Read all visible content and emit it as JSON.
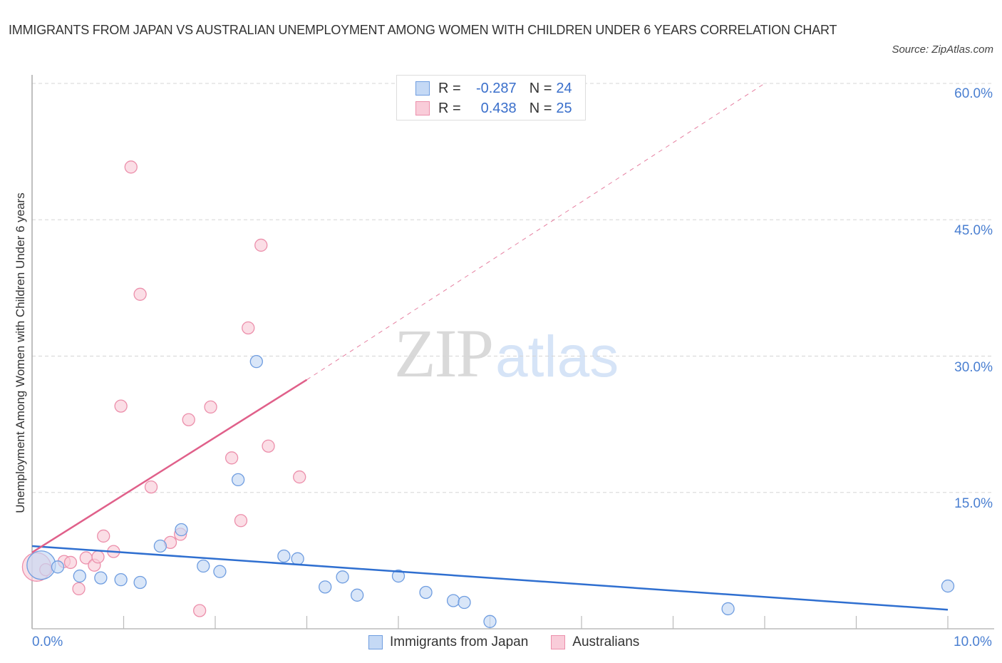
{
  "header": {
    "title": "IMMIGRANTS FROM JAPAN VS AUSTRALIAN UNEMPLOYMENT AMONG WOMEN WITH CHILDREN UNDER 6 YEARS CORRELATION CHART",
    "source": "Source: ZipAtlas.com"
  },
  "axes": {
    "ylabel": "Unemployment Among Women with Children Under 6 years",
    "yticks": [
      "60.0%",
      "45.0%",
      "30.0%",
      "15.0%"
    ],
    "xticks": [
      "0.0%",
      "10.0%"
    ]
  },
  "legend_top": {
    "rows": [
      {
        "r_label": "R =",
        "r_value": "-0.287",
        "n_label": "N =",
        "n_value": "24"
      },
      {
        "r_label": "R =",
        "r_value": "0.438",
        "n_label": "N =",
        "n_value": "25"
      }
    ]
  },
  "legend_bottom": {
    "items": [
      "Immigrants from Japan",
      "Australians"
    ]
  },
  "watermark": {
    "zip": "ZIP",
    "atlas": "atlas"
  },
  "colors": {
    "japan_fill": "#c5d9f5",
    "japan_stroke": "#6f9de0",
    "japan_line": "#2f6fd0",
    "aus_fill": "#f9ccd9",
    "aus_stroke": "#ec8fab",
    "aus_line": "#e0608a",
    "tick_label": "#4a7fd1"
  },
  "chart_data": {
    "type": "scatter",
    "title": "IMMIGRANTS FROM JAPAN VS AUSTRALIAN UNEMPLOYMENT AMONG WOMEN WITH CHILDREN UNDER 6 YEARS CORRELATION CHART",
    "xlabel": "",
    "ylabel": "Unemployment Among Women with Children Under 6 years",
    "xlim": [
      0,
      10
    ],
    "ylim": [
      0,
      60
    ],
    "x_unit": "%",
    "y_unit": "%",
    "grid": true,
    "legend_position": "bottom",
    "series": [
      {
        "name": "Immigrants from Japan",
        "R": -0.287,
        "N": 24,
        "points": [
          {
            "x": 0.1,
            "y": 7.0,
            "size": "large"
          },
          {
            "x": 0.28,
            "y": 6.8
          },
          {
            "x": 0.52,
            "y": 5.8
          },
          {
            "x": 0.75,
            "y": 5.6
          },
          {
            "x": 0.97,
            "y": 5.4
          },
          {
            "x": 1.18,
            "y": 5.1
          },
          {
            "x": 1.4,
            "y": 9.1
          },
          {
            "x": 1.63,
            "y": 10.9
          },
          {
            "x": 1.87,
            "y": 6.9
          },
          {
            "x": 2.05,
            "y": 6.3
          },
          {
            "x": 2.25,
            "y": 16.4
          },
          {
            "x": 2.45,
            "y": 29.4
          },
          {
            "x": 2.75,
            "y": 8.0
          },
          {
            "x": 2.9,
            "y": 7.7
          },
          {
            "x": 3.2,
            "y": 4.6
          },
          {
            "x": 3.39,
            "y": 5.7
          },
          {
            "x": 3.55,
            "y": 3.7
          },
          {
            "x": 4.0,
            "y": 5.8
          },
          {
            "x": 4.3,
            "y": 4.0
          },
          {
            "x": 4.6,
            "y": 3.1
          },
          {
            "x": 4.72,
            "y": 2.9
          },
          {
            "x": 5.0,
            "y": 0.8
          },
          {
            "x": 7.6,
            "y": 2.2
          },
          {
            "x": 10.0,
            "y": 4.7
          }
        ],
        "trend": {
          "x0": 0,
          "y0": 9.1,
          "x1": 10,
          "y1": 2.1
        }
      },
      {
        "name": "Australians",
        "R": 0.438,
        "N": 25,
        "points": [
          {
            "x": 0.05,
            "y": 6.8,
            "size": "large"
          },
          {
            "x": 0.15,
            "y": 6.5
          },
          {
            "x": 0.35,
            "y": 7.4
          },
          {
            "x": 0.42,
            "y": 7.3
          },
          {
            "x": 0.51,
            "y": 4.4
          },
          {
            "x": 0.59,
            "y": 7.8
          },
          {
            "x": 0.68,
            "y": 7.0
          },
          {
            "x": 0.78,
            "y": 10.2
          },
          {
            "x": 0.89,
            "y": 8.5
          },
          {
            "x": 0.97,
            "y": 24.5
          },
          {
            "x": 1.08,
            "y": 50.8
          },
          {
            "x": 1.18,
            "y": 36.8
          },
          {
            "x": 1.3,
            "y": 15.6
          },
          {
            "x": 1.51,
            "y": 9.5
          },
          {
            "x": 1.62,
            "y": 10.4
          },
          {
            "x": 1.71,
            "y": 23.0
          },
          {
            "x": 1.83,
            "y": 2.0
          },
          {
            "x": 1.95,
            "y": 24.4
          },
          {
            "x": 2.18,
            "y": 18.8
          },
          {
            "x": 2.28,
            "y": 11.9
          },
          {
            "x": 2.36,
            "y": 33.1
          },
          {
            "x": 2.5,
            "y": 42.2
          },
          {
            "x": 2.58,
            "y": 20.1
          },
          {
            "x": 2.92,
            "y": 16.7
          },
          {
            "x": 0.72,
            "y": 7.9
          }
        ],
        "trend": {
          "x0": 0,
          "y0": 8.4,
          "x1": 3.0,
          "y1": 27.4,
          "dashed_to": {
            "x": 8.0,
            "y": 60.0
          }
        }
      }
    ]
  }
}
